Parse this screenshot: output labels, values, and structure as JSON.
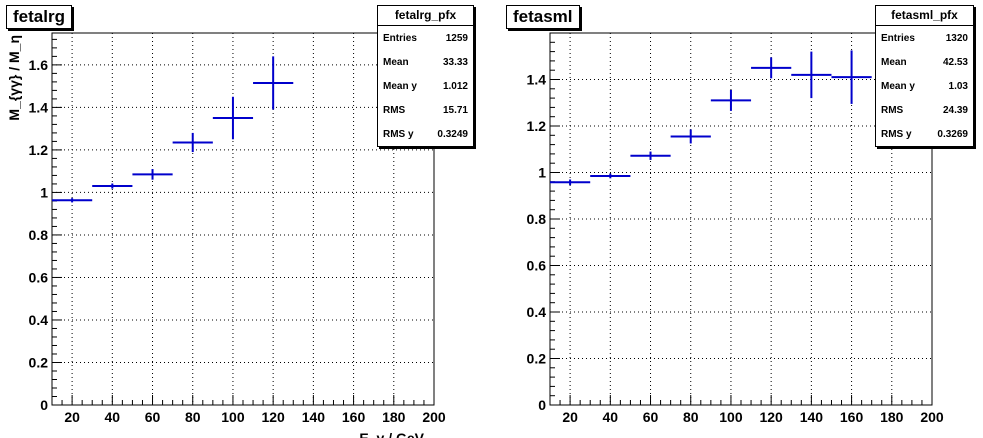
{
  "chart_data": [
    {
      "type": "scatter",
      "title": "fetalrg",
      "ylabel": "M_{γγ} / M_η",
      "xlabel": "E_γ / GeV",
      "xlim": [
        10,
        200
      ],
      "ylim": [
        0,
        1.75
      ],
      "xticks": [
        20,
        40,
        60,
        80,
        100,
        120,
        140,
        160,
        180,
        200
      ],
      "yticks": [
        0,
        0.2,
        0.4,
        0.6,
        0.8,
        1,
        1.2,
        1.4,
        1.6
      ],
      "grid": true,
      "points": [
        {
          "x": 20,
          "xerr": 10,
          "y": 0.963,
          "yerr": 0.01
        },
        {
          "x": 40,
          "xerr": 10,
          "y": 1.03,
          "yerr": 0.012
        },
        {
          "x": 60,
          "xerr": 10,
          "y": 1.085,
          "yerr": 0.025
        },
        {
          "x": 80,
          "xerr": 10,
          "y": 1.235,
          "yerr": 0.045
        },
        {
          "x": 100,
          "xerr": 10,
          "y": 1.35,
          "yerr": 0.1
        },
        {
          "x": 120,
          "xerr": 10,
          "y": 1.515,
          "yerr": 0.125
        }
      ],
      "stats": {
        "name": "fetalrg_pfx",
        "rows": [
          {
            "label": "Entries",
            "value": "1259"
          },
          {
            "label": "Mean",
            "value": "33.33"
          },
          {
            "label": "Mean y",
            "value": "1.012"
          },
          {
            "label": "RMS",
            "value": "15.71"
          },
          {
            "label": "RMS y",
            "value": "0.3249"
          }
        ]
      }
    },
    {
      "type": "scatter",
      "title": "fetasml",
      "ylabel": "",
      "xlabel": "",
      "xlim": [
        10,
        200
      ],
      "ylim": [
        0,
        1.6
      ],
      "xticks": [
        20,
        40,
        60,
        80,
        100,
        120,
        140,
        160,
        180,
        200
      ],
      "yticks": [
        0,
        0.2,
        0.4,
        0.6,
        0.8,
        1,
        1.2,
        1.4
      ],
      "grid": true,
      "points": [
        {
          "x": 20,
          "xerr": 10,
          "y": 0.958,
          "yerr": 0.012
        },
        {
          "x": 40,
          "xerr": 10,
          "y": 0.985,
          "yerr": 0.01
        },
        {
          "x": 60,
          "xerr": 10,
          "y": 1.072,
          "yerr": 0.018
        },
        {
          "x": 80,
          "xerr": 10,
          "y": 1.155,
          "yerr": 0.03
        },
        {
          "x": 100,
          "xerr": 10,
          "y": 1.31,
          "yerr": 0.045
        },
        {
          "x": 120,
          "xerr": 10,
          "y": 1.45,
          "yerr": 0.045
        },
        {
          "x": 140,
          "xerr": 10,
          "y": 1.42,
          "yerr": 0.1
        },
        {
          "x": 160,
          "xerr": 10,
          "y": 1.41,
          "yerr": 0.115
        }
      ],
      "stats": {
        "name": "fetasml_pfx",
        "rows": [
          {
            "label": "Entries",
            "value": "1320"
          },
          {
            "label": "Mean",
            "value": "42.53"
          },
          {
            "label": "Mean y",
            "value": "1.03"
          },
          {
            "label": "RMS",
            "value": "24.39"
          },
          {
            "label": "RMS y",
            "value": "0.3269"
          }
        ]
      }
    }
  ],
  "colors": {
    "marker": "#0000cc",
    "frame": "#000000",
    "grid": "#000000"
  }
}
